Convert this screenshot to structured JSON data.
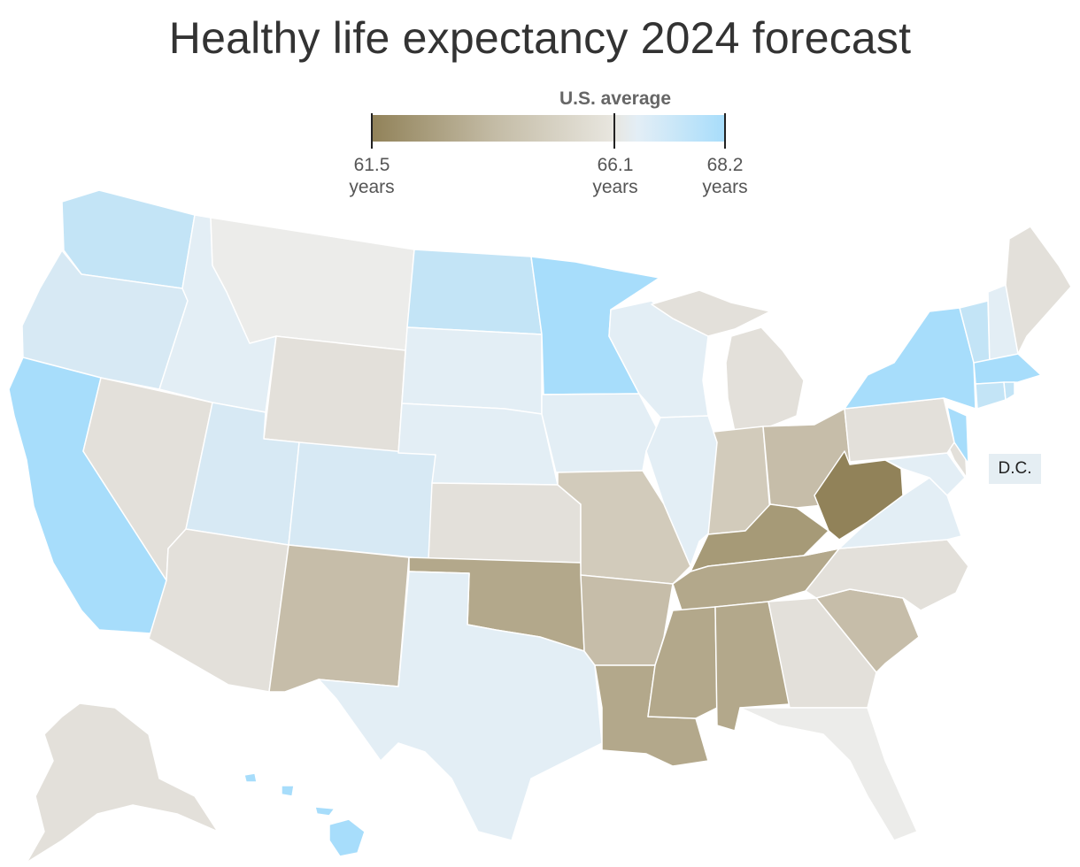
{
  "title": "Healthy life expectancy 2024 forecast",
  "legend": {
    "average_label": "U.S. average",
    "min_value": "61.5",
    "avg_value": "66.1",
    "max_value": "68.2",
    "unit": "years",
    "colors": {
      "low": "#918259",
      "mid": "#e8e6df",
      "high": "#a7ddfb"
    }
  },
  "dc_label": "D.C.",
  "colors": {
    "blue_strong": "#a7ddfb",
    "blue_mid": "#c3e4f6",
    "blue_light": "#d7e9f4",
    "blue_pale": "#e3eef5",
    "neutral_light": "#ececea",
    "neutral": "#e3e0da",
    "tan_light": "#d2cbbb",
    "tan": "#c6bda9",
    "tan_mid": "#b3a88b",
    "tan_dark": "#a69a77",
    "olive_dark": "#918259"
  }
}
